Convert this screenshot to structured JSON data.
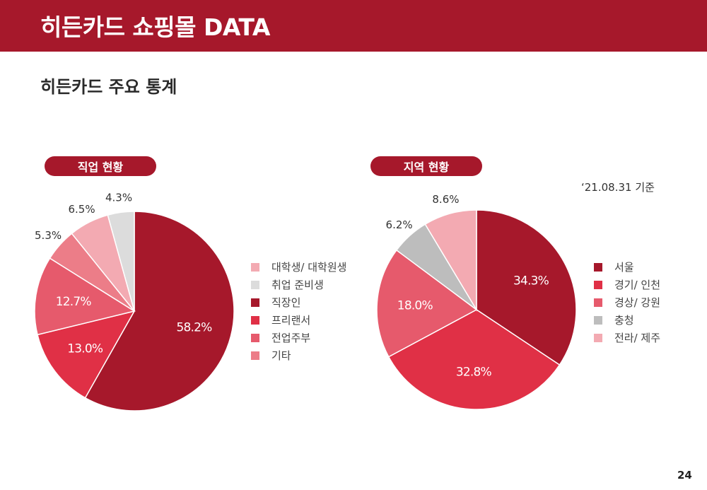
{
  "header": {
    "title": "히든카드 쇼핑몰 DATA"
  },
  "section": {
    "title": "히든카드 주요 통계"
  },
  "note": {
    "date_basis": "‘21.08.31 기준"
  },
  "page": {
    "number": "24"
  },
  "chart_data": [
    {
      "type": "pie",
      "title": "직업 현황",
      "slices": [
        {
          "label": "직장인",
          "value": 58.2,
          "display": "58.2%",
          "color": "#a6182b",
          "label_color": "#ffffff"
        },
        {
          "label": "프리랜서",
          "value": 13.0,
          "display": "13.0%",
          "color": "#e03046",
          "label_color": "#ffffff"
        },
        {
          "label": "전업주부",
          "value": 12.7,
          "display": "12.7%",
          "color": "#e65a6c",
          "label_color": "#ffffff"
        },
        {
          "label": "기타",
          "value": 5.3,
          "display": "5.3%",
          "color": "#ec7d88",
          "label_color": "#333333"
        },
        {
          "label": "대학생/ 대학원생",
          "value": 6.5,
          "display": "6.5%",
          "color": "#f3aab2",
          "label_color": "#333333"
        },
        {
          "label": "취업 준비생",
          "value": 4.3,
          "display": "4.3%",
          "color": "#dcdcdc",
          "label_color": "#333333"
        }
      ],
      "legend_order": [
        "대학생/ 대학원생",
        "취업 준비생",
        "직장인",
        "프리랜서",
        "전업주부",
        "기타"
      ],
      "legend_position": "right"
    },
    {
      "type": "pie",
      "title": "지역 현황",
      "slices": [
        {
          "label": "서울",
          "value": 34.3,
          "display": "34.3%",
          "color": "#a6182b",
          "label_color": "#ffffff"
        },
        {
          "label": "경기/ 인천",
          "value": 32.8,
          "display": "32.8%",
          "color": "#e03046",
          "label_color": "#ffffff"
        },
        {
          "label": "경상/ 강원",
          "value": 18.0,
          "display": "18.0%",
          "color": "#e65a6c",
          "label_color": "#ffffff"
        },
        {
          "label": "충청",
          "value": 6.2,
          "display": "6.2%",
          "color": "#bdbdbd",
          "label_color": "#333333"
        },
        {
          "label": "전라/ 제주",
          "value": 8.6,
          "display": "8.6%",
          "color": "#f3aab2",
          "label_color": "#333333"
        }
      ],
      "legend_order": [
        "서울",
        "경기/ 인천",
        "경상/ 강원",
        "충청",
        "전라/ 제주"
      ],
      "legend_position": "right"
    }
  ]
}
